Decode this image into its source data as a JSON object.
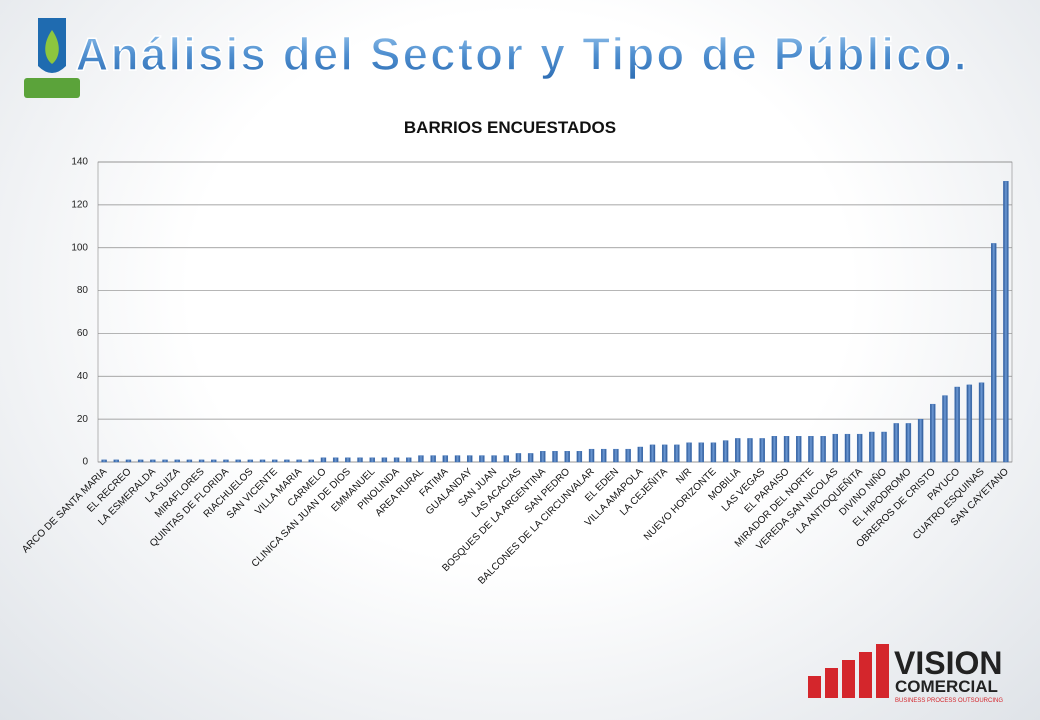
{
  "slide": {
    "title": "Análisis del Sector y Tipo de Público.",
    "brand": "VISION",
    "brand_sub": "COMERCIAL",
    "brand_tagline": "BUSINESS PROCESS OUTSOURCING"
  },
  "chart_data": {
    "type": "bar",
    "title": "BARRIOS ENCUESTADOS",
    "color": "#3b6fb6",
    "grid": true,
    "ylim": [
      0,
      140
    ],
    "yticks": [
      0,
      20,
      40,
      60,
      80,
      100,
      120,
      140
    ],
    "categories": [
      "ARCO DE SANTA MARIA",
      null,
      "EL RECREO",
      null,
      "LA ESMERALDA",
      null,
      "LA SUIZA",
      null,
      "MIRAFLORES",
      null,
      "QUINTAS DE FLORIDA",
      null,
      "RIACHUELOS",
      null,
      "SAN VICENTE",
      null,
      "VILLA MARIA",
      null,
      "CARMELO",
      null,
      "CLINICA SAN JUAN DE DIOS",
      null,
      "EMMANUEL",
      null,
      "PINOLINDA",
      null,
      "AREA RURAL",
      null,
      "FATIMA",
      null,
      "GUALANDAY",
      null,
      "SAN JUAN",
      null,
      "LAS ACACIAS",
      null,
      "BOSQUES DE LA ARGENTINA",
      null,
      "SAN PEDRO",
      null,
      "BALCONES DE LA CIRCUNVALAR",
      null,
      "EL EDEN",
      null,
      "VILLA AMAPOLA",
      null,
      "LA CEJEÑITA",
      null,
      "N/R",
      null,
      "NUEVO HORIZONTE",
      null,
      "MOBILIA",
      null,
      "LAS VEGAS",
      null,
      "EL PARAISO",
      null,
      "MIRADOR DEL NORTE",
      null,
      "VEREDA SAN NICOLAS",
      null,
      "LA ANTIOQUEÑITA",
      null,
      "DIVINO NIÑO",
      null,
      "EL HIPODROMO",
      null,
      "OBREROS DE CRISTO",
      null,
      "PAYUCO",
      null,
      "CUATRO ESQUINAS",
      null,
      "SAN CAYETANO"
    ],
    "values": [
      1,
      1,
      1,
      1,
      1,
      1,
      1,
      1,
      1,
      1,
      1,
      1,
      1,
      1,
      1,
      1,
      1,
      1,
      2,
      2,
      2,
      2,
      2,
      2,
      2,
      2,
      3,
      3,
      3,
      3,
      3,
      3,
      3,
      3,
      4,
      4,
      5,
      5,
      5,
      5,
      6,
      6,
      6,
      6,
      7,
      8,
      8,
      8,
      9,
      9,
      9,
      10,
      11,
      11,
      11,
      12,
      12,
      12,
      12,
      12,
      13,
      13,
      13,
      14,
      14,
      18,
      18,
      20,
      27,
      31,
      35,
      36,
      37,
      102,
      131
    ]
  }
}
